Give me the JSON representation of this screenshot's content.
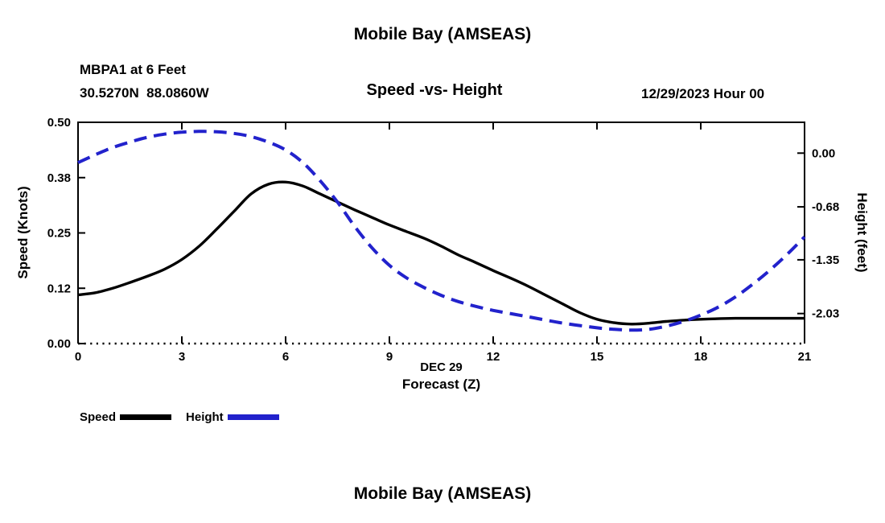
{
  "page": {
    "top_title": "Mobile Bay (AMSEAS)",
    "bottom_title": "Mobile Bay (AMSEAS)"
  },
  "header": {
    "station": "MBPA1 at 6 Feet",
    "coords": "30.5270N  88.0860W",
    "chart_title": "Speed -vs- Height",
    "datetime": "12/29/2023 Hour 00"
  },
  "legend": {
    "speed_label": "Speed",
    "height_label": "Height"
  },
  "colors": {
    "speed_line": "#000000",
    "height_line": "#2222cc",
    "text": "#000000"
  },
  "chart_data": {
    "type": "line",
    "title": "Speed -vs- Height",
    "x_range": [
      0,
      21
    ],
    "x_ticks": [
      0,
      3,
      6,
      9,
      12,
      15,
      18,
      21
    ],
    "x_date_label": "DEC 29",
    "x_axis_label": "Forecast (Z)",
    "grid": false,
    "legend_position": "bottom-left",
    "left_axis": {
      "label": "Speed (Knots)",
      "units": "Knots",
      "min": 0.0,
      "max": 0.5,
      "ticks": [
        {
          "value": 0.0,
          "label": "0.00"
        },
        {
          "value": 0.125,
          "label": "0.12"
        },
        {
          "value": 0.25,
          "label": "0.25"
        },
        {
          "value": 0.375,
          "label": "0.38"
        },
        {
          "value": 0.5,
          "label": "0.50"
        }
      ]
    },
    "right_axis": {
      "label": "Height (feet)",
      "units": "feet",
      "min": -2.41,
      "max": 0.39,
      "ticks": [
        {
          "value": 0.0,
          "label": "0.00"
        },
        {
          "value": -0.68,
          "label": "-0.68"
        },
        {
          "value": -1.35,
          "label": "-1.35"
        },
        {
          "value": -2.03,
          "label": "-2.03"
        }
      ]
    },
    "series": [
      {
        "name": "Speed",
        "axis": "left",
        "style": "solid",
        "color": "#000000",
        "x": [
          0,
          0.5,
          1,
          1.5,
          2,
          2.5,
          3,
          3.5,
          4,
          4.5,
          5,
          5.5,
          6,
          6.5,
          7,
          7.5,
          8,
          8.5,
          9,
          9.5,
          10,
          10.5,
          11,
          11.5,
          12,
          12.5,
          13,
          13.5,
          14,
          14.5,
          15,
          15.5,
          16,
          16.5,
          17,
          17.5,
          18,
          19,
          20,
          21
        ],
        "values": [
          0.11,
          0.115,
          0.125,
          0.138,
          0.152,
          0.168,
          0.19,
          0.22,
          0.258,
          0.298,
          0.338,
          0.36,
          0.365,
          0.356,
          0.338,
          0.32,
          0.302,
          0.285,
          0.268,
          0.253,
          0.238,
          0.22,
          0.2,
          0.183,
          0.165,
          0.148,
          0.13,
          0.11,
          0.09,
          0.07,
          0.055,
          0.047,
          0.044,
          0.046,
          0.05,
          0.053,
          0.055,
          0.057,
          0.057,
          0.057
        ]
      },
      {
        "name": "Height",
        "axis": "right",
        "style": "dashed",
        "color": "#2222cc",
        "x": [
          0,
          0.5,
          1,
          1.5,
          2,
          2.5,
          3,
          3.5,
          4,
          4.5,
          5,
          5.5,
          6,
          6.5,
          7,
          7.5,
          8,
          8.5,
          9,
          9.5,
          10,
          10.5,
          11,
          11.5,
          12,
          13,
          14,
          15,
          15.5,
          16,
          16.5,
          17,
          17.5,
          18,
          18.5,
          19,
          19.5,
          20,
          20.5,
          21
        ],
        "values": [
          -0.12,
          -0.02,
          0.07,
          0.14,
          0.2,
          0.24,
          0.265,
          0.275,
          0.27,
          0.25,
          0.21,
          0.14,
          0.04,
          -0.12,
          -0.35,
          -0.62,
          -0.93,
          -1.2,
          -1.42,
          -1.58,
          -1.7,
          -1.8,
          -1.88,
          -1.94,
          -1.99,
          -2.07,
          -2.15,
          -2.21,
          -2.23,
          -2.24,
          -2.23,
          -2.19,
          -2.13,
          -2.05,
          -1.95,
          -1.82,
          -1.66,
          -1.48,
          -1.28,
          -1.06
        ]
      }
    ]
  }
}
